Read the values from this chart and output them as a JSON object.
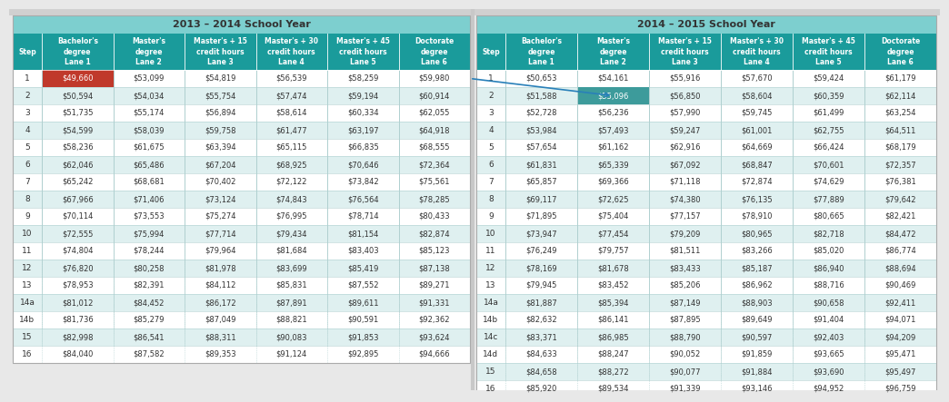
{
  "title_left": "2013 – 2014 School Year",
  "title_right": "2014 – 2015 School Year",
  "col_headers": [
    "Step",
    "Bachelor's\ndegree\nLane 1",
    "Master's\ndegree\nLane 2",
    "Master's + 15\ncredit hours\nLane 3",
    "Master's + 30\ncredit hours\nLane 4",
    "Master's + 45\ncredit hours\nLane 5",
    "Doctorate\ndegree\nLane 6"
  ],
  "steps_left": [
    "1",
    "2",
    "3",
    "4",
    "5",
    "6",
    "7",
    "8",
    "9",
    "10",
    "11",
    "12",
    "13",
    "14a",
    "14b",
    "15",
    "16"
  ],
  "steps_right": [
    "1",
    "2",
    "3",
    "4",
    "5",
    "6",
    "7",
    "8",
    "9",
    "10",
    "11",
    "12",
    "13",
    "14a",
    "14b",
    "14c",
    "14d",
    "15",
    "16"
  ],
  "data_left": [
    [
      "$49,660",
      "$53,099",
      "$54,819",
      "$56,539",
      "$58,259",
      "$59,980"
    ],
    [
      "$50,594",
      "$54,034",
      "$55,754",
      "$57,474",
      "$59,194",
      "$60,914"
    ],
    [
      "$51,735",
      "$55,174",
      "$56,894",
      "$58,614",
      "$60,334",
      "$62,055"
    ],
    [
      "$54,599",
      "$58,039",
      "$59,758",
      "$61,477",
      "$63,197",
      "$64,918"
    ],
    [
      "$58,236",
      "$61,675",
      "$63,394",
      "$65,115",
      "$66,835",
      "$68,555"
    ],
    [
      "$62,046",
      "$65,486",
      "$67,204",
      "$68,925",
      "$70,646",
      "$72,364"
    ],
    [
      "$65,242",
      "$68,681",
      "$70,402",
      "$72,122",
      "$73,842",
      "$75,561"
    ],
    [
      "$67,966",
      "$71,406",
      "$73,124",
      "$74,843",
      "$76,564",
      "$78,285"
    ],
    [
      "$70,114",
      "$73,553",
      "$75,274",
      "$76,995",
      "$78,714",
      "$80,433"
    ],
    [
      "$72,555",
      "$75,994",
      "$77,714",
      "$79,434",
      "$81,154",
      "$82,874"
    ],
    [
      "$74,804",
      "$78,244",
      "$79,964",
      "$81,684",
      "$83,403",
      "$85,123"
    ],
    [
      "$76,820",
      "$80,258",
      "$81,978",
      "$83,699",
      "$85,419",
      "$87,138"
    ],
    [
      "$78,953",
      "$82,391",
      "$84,112",
      "$85,831",
      "$87,552",
      "$89,271"
    ],
    [
      "$81,012",
      "$84,452",
      "$86,172",
      "$87,891",
      "$89,611",
      "$91,331"
    ],
    [
      "$81,736",
      "$85,279",
      "$87,049",
      "$88,821",
      "$90,591",
      "$92,362"
    ],
    [
      "$82,998",
      "$86,541",
      "$88,311",
      "$90,083",
      "$91,853",
      "$93,624"
    ],
    [
      "$84,040",
      "$87,582",
      "$89,353",
      "$91,124",
      "$92,895",
      "$94,666"
    ]
  ],
  "data_right": [
    [
      "$50,653",
      "$54,161",
      "$55,916",
      "$57,670",
      "$59,424",
      "$61,179"
    ],
    [
      "$51,588",
      "$55,096",
      "$56,850",
      "$58,604",
      "$60,359",
      "$62,114"
    ],
    [
      "$52,728",
      "$56,236",
      "$57,990",
      "$59,745",
      "$61,499",
      "$63,254"
    ],
    [
      "$53,984",
      "$57,493",
      "$59,247",
      "$61,001",
      "$62,755",
      "$64,511"
    ],
    [
      "$57,654",
      "$61,162",
      "$62,916",
      "$64,669",
      "$66,424",
      "$68,179"
    ],
    [
      "$61,831",
      "$65,339",
      "$67,092",
      "$68,847",
      "$70,601",
      "$72,357"
    ],
    [
      "$65,857",
      "$69,366",
      "$71,118",
      "$72,874",
      "$74,629",
      "$76,381"
    ],
    [
      "$69,117",
      "$72,625",
      "$74,380",
      "$76,135",
      "$77,889",
      "$79,642"
    ],
    [
      "$71,895",
      "$75,404",
      "$77,157",
      "$78,910",
      "$80,665",
      "$82,421"
    ],
    [
      "$73,947",
      "$77,454",
      "$79,209",
      "$80,965",
      "$82,718",
      "$84,472"
    ],
    [
      "$76,249",
      "$79,757",
      "$81,511",
      "$83,266",
      "$85,020",
      "$86,774"
    ],
    [
      "$78,169",
      "$81,678",
      "$83,433",
      "$85,187",
      "$86,940",
      "$88,694"
    ],
    [
      "$79,945",
      "$83,452",
      "$85,206",
      "$86,962",
      "$88,716",
      "$90,469"
    ],
    [
      "$81,887",
      "$85,394",
      "$87,149",
      "$88,903",
      "$90,658",
      "$92,411"
    ],
    [
      "$82,632",
      "$86,141",
      "$87,895",
      "$89,649",
      "$91,404",
      "$94,071"
    ],
    [
      "$83,371",
      "$86,985",
      "$88,790",
      "$90,597",
      "$92,403",
      "$94,209"
    ],
    [
      "$84,633",
      "$88,247",
      "$90,052",
      "$91,859",
      "$93,665",
      "$95,471"
    ],
    [
      "$84,658",
      "$88,272",
      "$90,077",
      "$91,884",
      "$93,690",
      "$95,497"
    ],
    [
      "$85,920",
      "$89,534",
      "$91,339",
      "$93,146",
      "$94,952",
      "$96,759"
    ]
  ],
  "header_light_bg": "#7dcfcf",
  "col_header_bg": "#1a9b9b",
  "row_odd_bg": "#ffffff",
  "row_even_bg": "#dff0f0",
  "highlight_red_bg": "#c0392b",
  "highlight_red_fg": "#ffffff",
  "highlight_teal_bg": "#3d9b9b",
  "highlight_teal_fg": "#ffffff",
  "text_color": "#333333",
  "header_text_color": "#ffffff",
  "title_text_color": "#333333",
  "sep_color": "#b0d0d0",
  "vsep_color": "#b0d0d0",
  "outer_border": "#aaaaaa",
  "arrow_color": "#2980b9",
  "gap_color": "#c0c0c0"
}
